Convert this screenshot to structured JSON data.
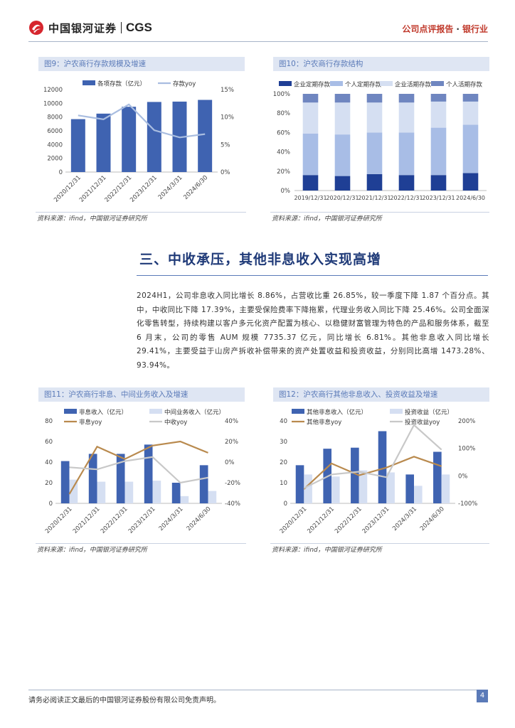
{
  "header": {
    "logo_cn": "中国银河证券",
    "logo_en": "CGS",
    "report_type": "公司点评报告",
    "separator": "·",
    "industry": "银行业"
  },
  "figures": {
    "fig9": {
      "title": "图9：沪农商行存款规模及增速",
      "source": "资料来源：ifind，中国银河证券研究所"
    },
    "fig10": {
      "title": "图10：沪农商行存款结构",
      "source": "资料来源：ifind，中国银河证券研究所"
    },
    "fig11": {
      "title": "图11：沪农商行非息、中间业务收入及增速",
      "source": "资料来源：ifind，中国银河证券研究所"
    },
    "fig12": {
      "title": "图12：沪农商行其他非息收入、投资收益及增速",
      "source": "资料来源：ifind，中国银河证券研究所"
    }
  },
  "section": {
    "title": "三、中收承压，其他非息收入实现高增",
    "paragraph": "2024H1，公司非息收入同比增长 8.86%，占营收比重 26.85%，较一季度下降 1.87 个百分点。其中，中收同比下降 17.39%，主要受保险费率下降拖累，代理业务收入同比下降 25.46%。公司全面深化零售转型，持续构建以客户多元化资产配置为核心、以稳健财富管理为特色的产品和服务体系，截至 6 月末，公司的零售 AUM 规模 7735.37 亿元，同比增长 6.81%。其他非息收入同比增长 29.41%，主要受益于山房产拆收补偿带来的资产处置收益和投资收益，分别同比高增 1473.28%、93.94%。"
  },
  "footer": {
    "disclaimer": "请务必阅读正文最后的中国银河证券股份有限公司免责声明。",
    "page": "4"
  },
  "chart_data": [
    {
      "id": "fig9",
      "type": "bar",
      "categories": [
        "2020/12/31",
        "2021/12/31",
        "2022/12/31",
        "2023/12/31",
        "2024/3/31",
        "2024/6/30"
      ],
      "series": [
        {
          "name": "各项存款（亿元）",
          "type": "bar",
          "axis": "left",
          "color": "#3f63b1",
          "values": [
            7700,
            8500,
            9500,
            10200,
            10250,
            10500
          ]
        },
        {
          "name": "存款yoy",
          "type": "line",
          "axis": "right",
          "color": "#a9bde0",
          "values": [
            10.3,
            9.6,
            12.3,
            7.6,
            6.3,
            6.9
          ]
        }
      ],
      "yleft_ticks": [
        "0",
        "2000",
        "4000",
        "6000",
        "8000",
        "10000",
        "12000"
      ],
      "yleft_lim": [
        0,
        12000
      ],
      "yright_ticks": [
        "0%",
        "5%",
        "10%",
        "15%"
      ],
      "yright_lim": [
        0,
        15
      ]
    },
    {
      "id": "fig10",
      "type": "bar",
      "stacked": true,
      "categories": [
        "2019/12/31",
        "2020/12/31",
        "2021/12/31",
        "2022/12/31",
        "2023/12/31",
        "2024/6/30"
      ],
      "series": [
        {
          "name": "企业定期存款",
          "color": "#1f3f95",
          "values": [
            16,
            15,
            17,
            16,
            16,
            18
          ]
        },
        {
          "name": "个人定期存款",
          "color": "#a8bde6",
          "values": [
            43,
            43,
            43,
            44,
            49,
            50
          ]
        },
        {
          "name": "企业活期存款",
          "color": "#d5dff2",
          "values": [
            32,
            33,
            31,
            31,
            27,
            24
          ]
        },
        {
          "name": "个人活期存款",
          "color": "#6f86c0",
          "values": [
            9,
            9,
            9,
            9,
            8,
            8
          ]
        }
      ],
      "y_ticks": [
        "0%",
        "20%",
        "40%",
        "60%",
        "80%",
        "100%"
      ],
      "ylim": [
        0,
        100
      ]
    },
    {
      "id": "fig11",
      "type": "bar",
      "categories": [
        "2020/12/31",
        "2021/12/31",
        "2022/12/31",
        "2023/12/31",
        "2024/3/31",
        "2024/6/30"
      ],
      "series": [
        {
          "name": "非息收入（亿元）",
          "type": "bar",
          "axis": "left",
          "color": "#3f63b1",
          "values": [
            41,
            48,
            48,
            57,
            20,
            37
          ]
        },
        {
          "name": "中间业务收入（亿元）",
          "type": "bar",
          "axis": "left",
          "color": "#d5dff2",
          "values": [
            23,
            21,
            21,
            22,
            7,
            12
          ]
        },
        {
          "name": "非息yoy",
          "type": "line",
          "axis": "right",
          "color": "#b98a4e",
          "values": [
            -31,
            15,
            3,
            16,
            20,
            9
          ]
        },
        {
          "name": "中收yoy",
          "type": "line",
          "axis": "right",
          "color": "#c8c8c8",
          "values": [
            -5,
            -7,
            1,
            5,
            -20,
            -15
          ]
        }
      ],
      "yleft_ticks": [
        "0",
        "20",
        "40",
        "60",
        "80"
      ],
      "yleft_lim": [
        0,
        80
      ],
      "yright_ticks": [
        "-40%",
        "-20%",
        "0%",
        "20%",
        "40%"
      ],
      "yright_lim": [
        -40,
        40
      ]
    },
    {
      "id": "fig12",
      "type": "bar",
      "categories": [
        "2020/12/31",
        "2021/12/31",
        "2022/12/31",
        "2023/12/31",
        "2024/3/31",
        "2024/6/30"
      ],
      "series": [
        {
          "name": "其他非息收入（亿元）",
          "type": "bar",
          "axis": "left",
          "color": "#3f63b1",
          "values": [
            18.5,
            26.5,
            27,
            35,
            14,
            25
          ]
        },
        {
          "name": "投资收益（亿元）",
          "type": "bar",
          "axis": "left",
          "color": "#d5dff2",
          "values": [
            14,
            13,
            16,
            15,
            8.5,
            14
          ]
        },
        {
          "name": "其他非息yoy",
          "type": "line",
          "axis": "right",
          "color": "#b98a4e",
          "values": [
            -48,
            45,
            2,
            30,
            70,
            35
          ]
        },
        {
          "name": "投资收益yoy",
          "type": "line",
          "axis": "right",
          "color": "#c8c8c8",
          "values": [
            -45,
            5,
            15,
            -5,
            185,
            95
          ]
        }
      ],
      "yleft_ticks": [
        "0",
        "10",
        "20",
        "30",
        "40"
      ],
      "yleft_lim": [
        0,
        40
      ],
      "yright_ticks": [
        "-100%",
        "0%",
        "100%",
        "200%"
      ],
      "yright_lim": [
        -100,
        200
      ]
    }
  ]
}
